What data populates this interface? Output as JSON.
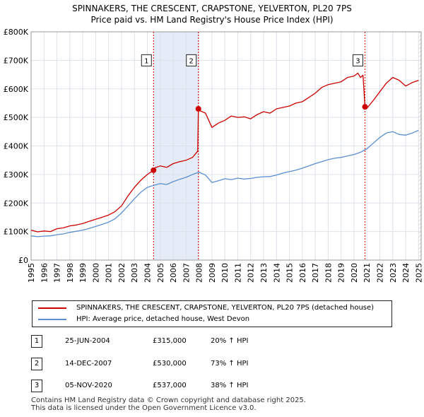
{
  "chart_data": {
    "type": "line",
    "title": "SPINNAKERS, THE CRESCENT, CRAPSTONE, YELVERTON, PL20 7PS",
    "subtitle": "Price paid vs. HM Land Registry's House Price Index (HPI)",
    "xlim": [
      1995.0,
      2025.2
    ],
    "ylim": [
      0,
      800000
    ],
    "y_ticks": [
      {
        "value": 0,
        "label": "£0"
      },
      {
        "value": 100000,
        "label": "£100K"
      },
      {
        "value": 200000,
        "label": "£200K"
      },
      {
        "value": 300000,
        "label": "£300K"
      },
      {
        "value": 400000,
        "label": "£400K"
      },
      {
        "value": 500000,
        "label": "£500K"
      },
      {
        "value": 600000,
        "label": "£600K"
      },
      {
        "value": 700000,
        "label": "£700K"
      },
      {
        "value": 800000,
        "label": "£800K"
      }
    ],
    "x_ticks": [
      "1995",
      "1996",
      "1997",
      "1998",
      "1999",
      "2000",
      "2001",
      "2002",
      "2003",
      "2004",
      "2005",
      "2006",
      "2007",
      "2008",
      "2009",
      "2010",
      "2011",
      "2012",
      "2013",
      "2014",
      "2015",
      "2016",
      "2017",
      "2018",
      "2019",
      "2020",
      "2021",
      "2022",
      "2023",
      "2024",
      "2025"
    ],
    "grid": true,
    "series": [
      {
        "name": "SPINNAKERS, THE CRESCENT, CRAPSTONE, YELVERTON, PL20 7PS (detached house)",
        "color": "#cc0000",
        "x": [
          1995.0,
          1995.5,
          1996.0,
          1996.5,
          1997.0,
          1997.5,
          1998.0,
          1998.5,
          1999.0,
          1999.5,
          2000.0,
          2000.5,
          2001.0,
          2001.5,
          2002.0,
          2002.5,
          2003.0,
          2003.5,
          2004.0,
          2004.48,
          2004.5,
          2005.0,
          2005.5,
          2006.0,
          2006.5,
          2007.0,
          2007.5,
          2007.9,
          2007.95,
          2008.0,
          2008.5,
          2009.0,
          2009.5,
          2010.0,
          2010.5,
          2011.0,
          2011.5,
          2012.0,
          2012.5,
          2013.0,
          2013.5,
          2014.0,
          2014.5,
          2015.0,
          2015.5,
          2016.0,
          2016.5,
          2017.0,
          2017.5,
          2018.0,
          2018.5,
          2019.0,
          2019.5,
          2020.0,
          2020.3,
          2020.5,
          2020.7,
          2020.85,
          2021.0,
          2021.5,
          2022.0,
          2022.5,
          2023.0,
          2023.5,
          2024.0,
          2024.5,
          2025.0
        ],
        "values": [
          105000,
          99000,
          102000,
          100000,
          110000,
          113000,
          120000,
          123000,
          128000,
          136000,
          143000,
          150000,
          158000,
          170000,
          190000,
          225000,
          255000,
          280000,
          300000,
          315000,
          322000,
          330000,
          325000,
          338000,
          345000,
          350000,
          360000,
          382000,
          530000,
          525000,
          515000,
          465000,
          480000,
          490000,
          505000,
          500000,
          502000,
          495000,
          510000,
          520000,
          515000,
          530000,
          535000,
          540000,
          550000,
          555000,
          570000,
          585000,
          605000,
          615000,
          620000,
          625000,
          640000,
          645000,
          655000,
          640000,
          648000,
          537000,
          532000,
          560000,
          590000,
          620000,
          640000,
          630000,
          610000,
          622000,
          630000
        ]
      },
      {
        "name": "HPI: Average price, detached house, West Devon",
        "color": "#5b8fd0",
        "x": [
          1995.0,
          1995.5,
          1996.0,
          1996.5,
          1997.0,
          1997.5,
          1998.0,
          1998.5,
          1999.0,
          1999.5,
          2000.0,
          2000.5,
          2001.0,
          2001.5,
          2002.0,
          2002.5,
          2003.0,
          2003.5,
          2004.0,
          2004.5,
          2005.0,
          2005.5,
          2006.0,
          2006.5,
          2007.0,
          2007.5,
          2008.0,
          2008.5,
          2009.0,
          2009.5,
          2010.0,
          2010.5,
          2011.0,
          2011.5,
          2012.0,
          2012.5,
          2013.0,
          2013.5,
          2014.0,
          2014.5,
          2015.0,
          2015.5,
          2016.0,
          2016.5,
          2017.0,
          2017.5,
          2018.0,
          2018.5,
          2019.0,
          2019.5,
          2020.0,
          2020.5,
          2021.0,
          2021.5,
          2022.0,
          2022.5,
          2023.0,
          2023.5,
          2024.0,
          2024.5,
          2025.0
        ],
        "values": [
          85000,
          82000,
          84000,
          85000,
          89000,
          92000,
          97000,
          101000,
          105000,
          111000,
          118000,
          125000,
          133000,
          145000,
          165000,
          190000,
          215000,
          238000,
          255000,
          262000,
          268000,
          265000,
          275000,
          283000,
          290000,
          300000,
          308000,
          298000,
          272000,
          278000,
          285000,
          282000,
          287000,
          284000,
          286000,
          290000,
          292000,
          293000,
          298000,
          305000,
          310000,
          315000,
          322000,
          330000,
          338000,
          345000,
          352000,
          357000,
          360000,
          365000,
          370000,
          378000,
          390000,
          410000,
          430000,
          445000,
          450000,
          440000,
          438000,
          445000,
          455000
        ]
      }
    ],
    "markers": [
      {
        "x": 2004.48,
        "y": 315000,
        "label": "1",
        "label_y": 700000
      },
      {
        "x": 2007.95,
        "y": 530000,
        "label": "2",
        "label_y": 700000
      },
      {
        "x": 2020.85,
        "y": 537000,
        "label": "3",
        "label_y": 700000
      }
    ],
    "shaded_ranges": [
      [
        2004.48,
        2007.95
      ]
    ],
    "shade_color": "#e5ecf8",
    "hatch_after": 2025.0,
    "marker_color": "#cc0000",
    "vline_color": "#cc0000",
    "grid_color": "#dde2ea"
  },
  "legend": {
    "property_label": "SPINNAKERS, THE CRESCENT, CRAPSTONE, YELVERTON, PL20 7PS (detached house)",
    "hpi_label": "HPI: Average price, detached house, West Devon"
  },
  "sales": [
    {
      "num": "1",
      "date": "25-JUN-2004",
      "price": "£315,000",
      "hpi": "20% ↑ HPI"
    },
    {
      "num": "2",
      "date": "14-DEC-2007",
      "price": "£530,000",
      "hpi": "73% ↑ HPI"
    },
    {
      "num": "3",
      "date": "05-NOV-2020",
      "price": "£537,000",
      "hpi": "38% ↑ HPI"
    }
  ],
  "footer": {
    "line1": "Contains HM Land Registry data © Crown copyright and database right 2025.",
    "line2": "This data is licensed under the Open Government Licence v3.0."
  }
}
